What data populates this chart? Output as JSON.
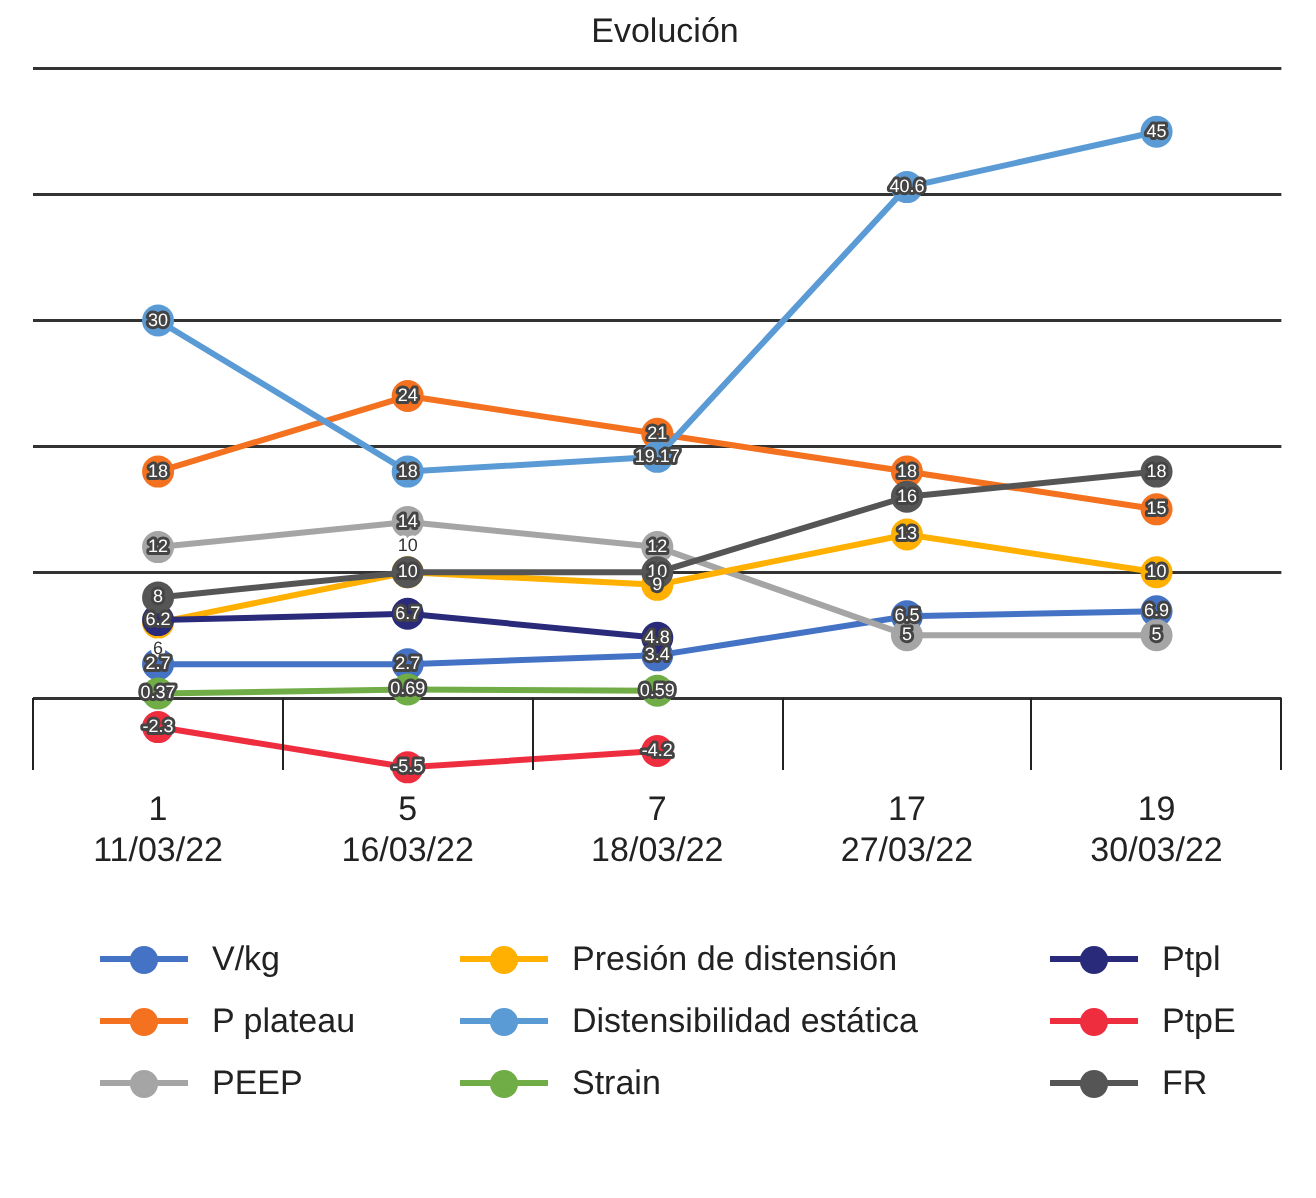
{
  "chart_data": {
    "type": "line",
    "title": "Evolución",
    "categories": [
      "1\n11/03/22",
      "5\n16/03/22",
      "7\n18/03/22",
      "17\n27/03/22",
      "19\n30/03/22"
    ],
    "series": [
      {
        "name": "V/kg",
        "color": "#4472c4",
        "values": [
          2.7,
          2.7,
          3.4,
          6.5,
          6.9
        ]
      },
      {
        "name": "P plateau",
        "color": "#f4711f",
        "values": [
          18,
          24,
          21,
          18,
          15
        ]
      },
      {
        "name": "PEEP",
        "color": "#a5a5a5",
        "values": [
          12,
          14,
          12,
          5,
          5
        ]
      },
      {
        "name": "Presión de distensión",
        "color": "#ffb000",
        "values": [
          6,
          10,
          9,
          13,
          10
        ]
      },
      {
        "name": "Distensibilidad estática",
        "color": "#5b9bd5",
        "values": [
          30,
          18,
          19.17,
          40.6,
          45
        ]
      },
      {
        "name": "Strain",
        "color": "#70ad47",
        "values": [
          0.37,
          0.69,
          0.59,
          null,
          null
        ]
      },
      {
        "name": "Ptpl",
        "color": "#2a2a7a",
        "values": [
          6.2,
          6.7,
          4.8,
          null,
          null
        ]
      },
      {
        "name": "PtpE",
        "color": "#ee2e3f",
        "values": [
          -2.3,
          -5.5,
          -4.2,
          null,
          null
        ]
      },
      {
        "name": "FR",
        "color": "#555555",
        "values": [
          8,
          10,
          10,
          16,
          18
        ]
      }
    ],
    "yticks": [
      0,
      10,
      20,
      30,
      40,
      50
    ],
    "tick_labels": "x",
    "grid": "y",
    "legend": "bottom",
    "marker": "circle",
    "line_style": "solid",
    "data_labels": true
  }
}
